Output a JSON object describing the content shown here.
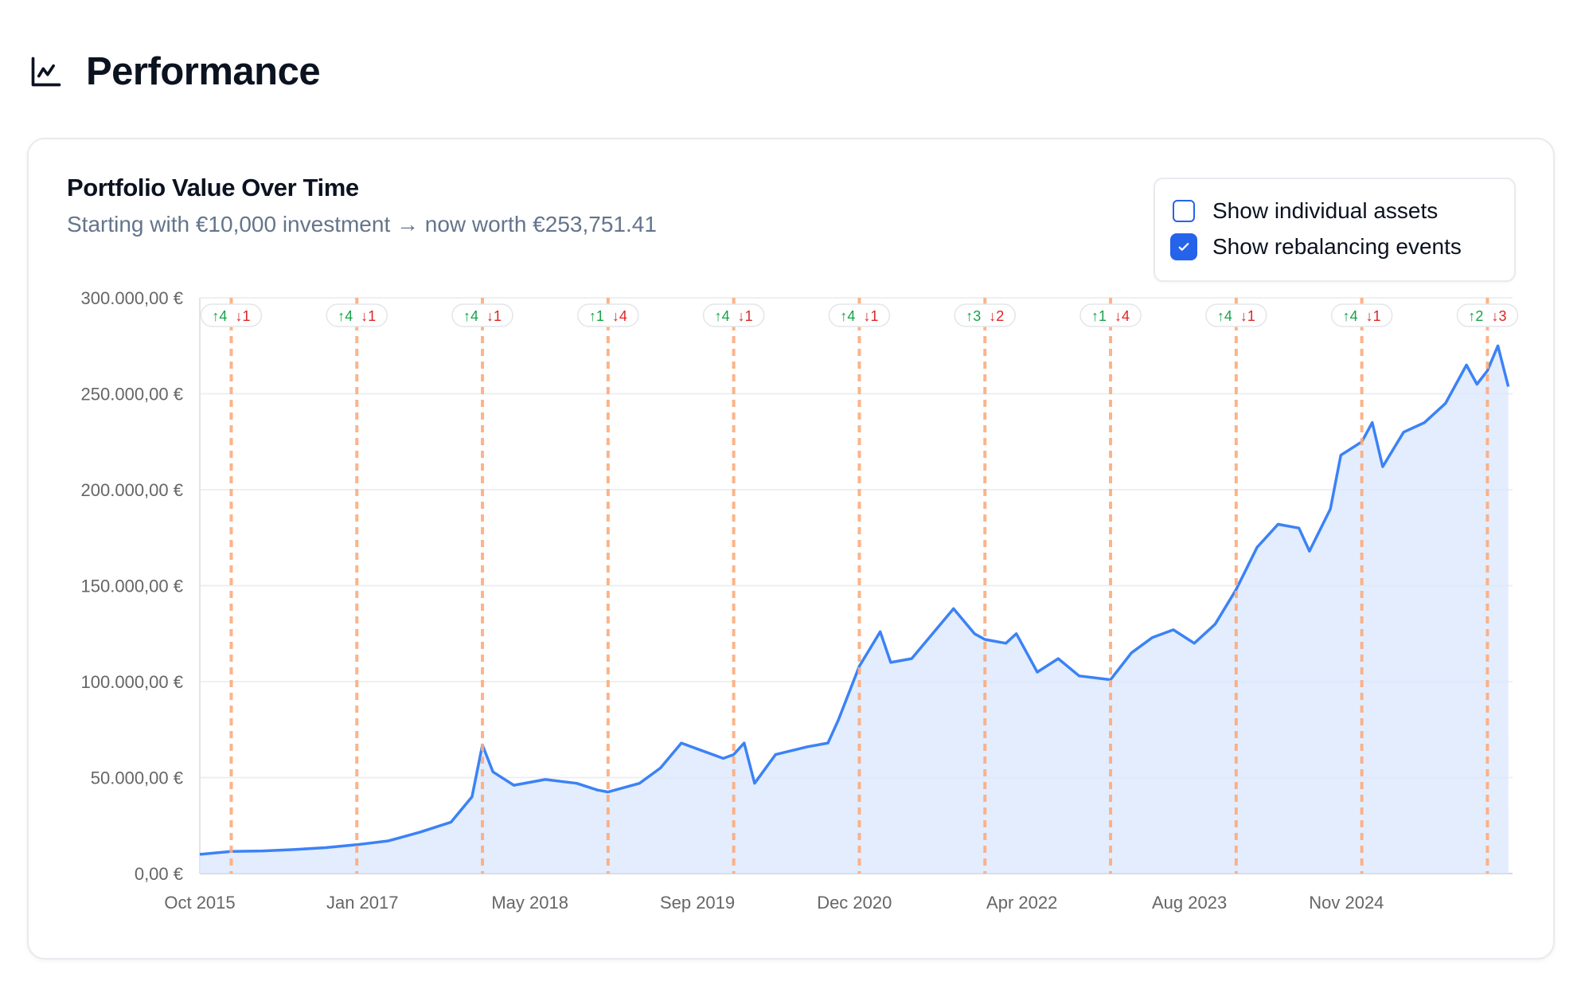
{
  "header": {
    "title": "Performance",
    "icon": "line-chart-icon"
  },
  "card": {
    "title": "Portfolio Value Over Time",
    "subtitle": "Starting with €10,000 investment → now worth €253,751.41"
  },
  "options": [
    {
      "label": "Show individual assets",
      "checked": false
    },
    {
      "label": "Show rebalancing events",
      "checked": true
    }
  ],
  "colors": {
    "line": "#3b82f6",
    "area": "#dbe7fd",
    "event_line": "#fdab7c",
    "up": "#16a34a",
    "down": "#dc2626",
    "checkbox": "#2563eb"
  },
  "chart_data": {
    "type": "area",
    "title": "Portfolio Value Over Time",
    "xlabel": "",
    "ylabel": "",
    "ylim": [
      0,
      300000
    ],
    "y_ticks": [
      "0,00 €",
      "50.000,00 €",
      "100.000,00 €",
      "150.000,00 €",
      "200.000,00 €",
      "250.000,00 €",
      "300.000,00 €"
    ],
    "x_range": [
      "2015-10",
      "2026-03"
    ],
    "x_ticks": [
      "Oct 2015",
      "Jan 2017",
      "May 2018",
      "Sep 2019",
      "Dec 2020",
      "Apr 2022",
      "Aug 2023",
      "Nov 2024"
    ],
    "grid": true,
    "series": [
      {
        "x": [
          "2015-10",
          "2016-01",
          "2016-04",
          "2016-07",
          "2016-10",
          "2017-01",
          "2017-04",
          "2017-07",
          "2017-10",
          "2017-12",
          "2018-01",
          "2018-02",
          "2018-04",
          "2018-07",
          "2018-10",
          "2018-12",
          "2019-01",
          "2019-04",
          "2019-06",
          "2019-08",
          "2019-10",
          "2019-12",
          "2020-01",
          "2020-02",
          "2020-03",
          "2020-05",
          "2020-08",
          "2020-10",
          "2020-11",
          "2021-01",
          "2021-02",
          "2021-03",
          "2021-04",
          "2021-06",
          "2021-08",
          "2021-10",
          "2021-12",
          "2022-01",
          "2022-03",
          "2022-04",
          "2022-06",
          "2022-08",
          "2022-10",
          "2023-01",
          "2023-03",
          "2023-05",
          "2023-07",
          "2023-09",
          "2023-11",
          "2024-01",
          "2024-03",
          "2024-05",
          "2024-07",
          "2024-08",
          "2024-10",
          "2024-11",
          "2025-01",
          "2025-02",
          "2025-03",
          "2025-05",
          "2025-07",
          "2025-09",
          "2025-11",
          "2025-12",
          "2026-01",
          "2026-02",
          "2026-03"
        ],
        "values": [
          10000,
          11500,
          11800,
          12500,
          13500,
          15000,
          17000,
          21500,
          26800,
          40000,
          67000,
          53000,
          46000,
          49000,
          47000,
          43500,
          42500,
          47000,
          55000,
          68000,
          64000,
          60000,
          62000,
          68000,
          47000,
          62000,
          66000,
          68000,
          80000,
          108000,
          117000,
          126000,
          110000,
          112000,
          125000,
          138000,
          125000,
          122000,
          120000,
          125000,
          105000,
          112000,
          103000,
          101000,
          115000,
          123000,
          127000,
          120000,
          130000,
          148000,
          170000,
          182000,
          180000,
          168000,
          190000,
          218000,
          225000,
          235000,
          212000,
          230000,
          235000,
          245000,
          265000,
          255000,
          262000,
          275000,
          253751.41
        ]
      }
    ],
    "rebalancing_events": [
      {
        "date": "2016-01",
        "up": "↑4",
        "down": "↓1"
      },
      {
        "date": "2017-01",
        "up": "↑4",
        "down": "↓1"
      },
      {
        "date": "2018-01",
        "up": "↑4",
        "down": "↓1"
      },
      {
        "date": "2019-01",
        "up": "↑1",
        "down": "↓4"
      },
      {
        "date": "2020-01",
        "up": "↑4",
        "down": "↓1"
      },
      {
        "date": "2021-01",
        "up": "↑4",
        "down": "↓1"
      },
      {
        "date": "2022-01",
        "up": "↑3",
        "down": "↓2"
      },
      {
        "date": "2023-01",
        "up": "↑1",
        "down": "↓4"
      },
      {
        "date": "2024-01",
        "up": "↑4",
        "down": "↓1"
      },
      {
        "date": "2025-01",
        "up": "↑4",
        "down": "↓1"
      },
      {
        "date": "2026-01",
        "up": "↑2",
        "down": "↓3"
      }
    ]
  }
}
